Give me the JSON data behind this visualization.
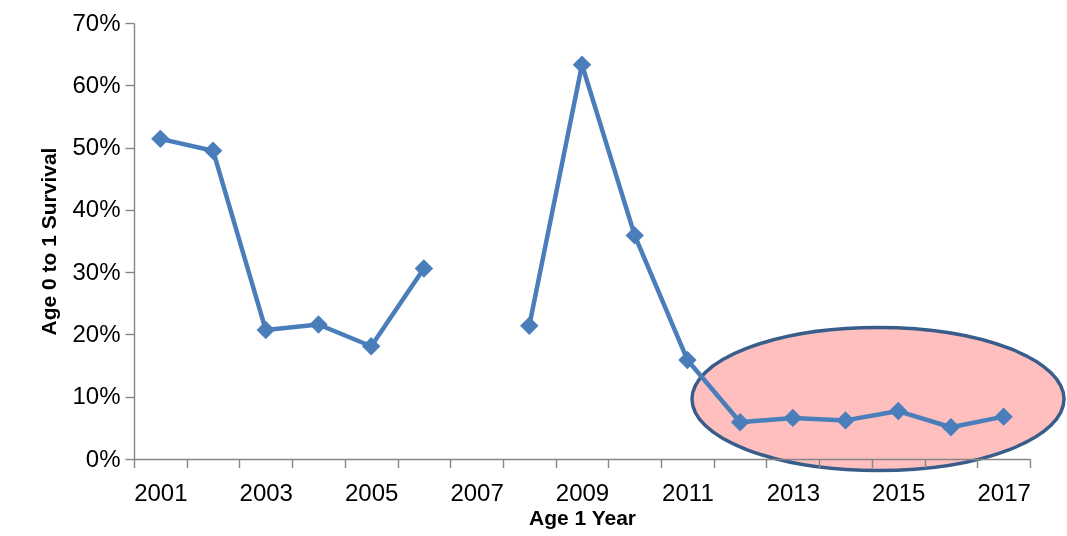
{
  "chart_data": {
    "type": "line",
    "xlabel": "Age 1 Year",
    "ylabel": "Age 0 to 1 Survival",
    "categories": [
      "2001",
      null,
      "2003",
      null,
      "2005",
      null,
      "2007",
      null,
      "2009",
      null,
      "2011",
      null,
      "2013",
      null,
      "2015",
      null,
      "2017"
    ],
    "series": [
      {
        "color": "#4a7ebb",
        "values": [
          51.4,
          49.5,
          20.7,
          21.6,
          18.1,
          30.6,
          null,
          21.4,
          63.3,
          35.9,
          15.9,
          5.9,
          6.6,
          6.2,
          7.7,
          5.1,
          6.8
        ]
      }
    ],
    "ylim": [
      0,
      70
    ],
    "yticks": [
      {
        "value": 0,
        "label": "0%"
      },
      {
        "value": 10,
        "label": "10%"
      },
      {
        "value": 20,
        "label": "20%"
      },
      {
        "value": 30,
        "label": "30%"
      },
      {
        "value": 40,
        "label": "40%"
      },
      {
        "value": 50,
        "label": "50%"
      },
      {
        "value": 60,
        "label": "60%"
      },
      {
        "value": 70,
        "label": "70%"
      }
    ],
    "marker": "diamond",
    "line_style": "solid"
  }
}
